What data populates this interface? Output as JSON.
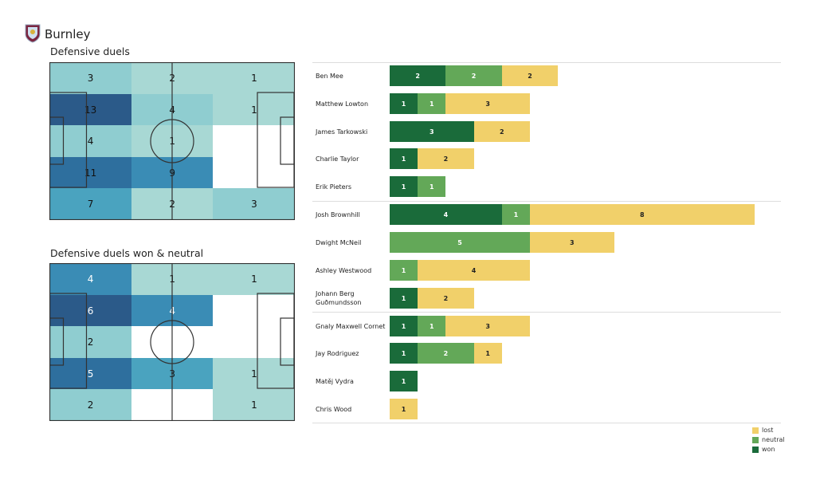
{
  "header": {
    "team": "Burnley"
  },
  "chart_data": [
    {
      "type": "heatmap",
      "title": "Defensive duels",
      "grid": [
        [
          3,
          2,
          1
        ],
        [
          13,
          4,
          1
        ],
        [
          4,
          1,
          null
        ],
        [
          11,
          9,
          null
        ],
        [
          7,
          2,
          3
        ]
      ]
    },
    {
      "type": "heatmap",
      "title": "Defensive duels won & neutral",
      "grid": [
        [
          4,
          1,
          1
        ],
        [
          6,
          4,
          null
        ],
        [
          2,
          null,
          null
        ],
        [
          5,
          3,
          1
        ],
        [
          2,
          null,
          1
        ]
      ]
    },
    {
      "type": "bar",
      "orientation": "horizontal",
      "stacked": true,
      "categories": [
        "Ben Mee",
        "Matthew Lowton",
        "James  Tarkowski",
        "Charlie Taylor",
        "Erik Pieters",
        "Josh Brownhill",
        "Dwight McNeil",
        "Ashley Westwood",
        "Johann  Berg Guðmundsson",
        "Gnaly Maxwell Cornet",
        "Jay Rodriguez",
        "Matěj Vydra",
        "Chris Wood"
      ],
      "series": [
        {
          "name": "won",
          "color": "#1a6b3a",
          "values": [
            2,
            1,
            3,
            1,
            1,
            4,
            0,
            0,
            1,
            1,
            1,
            1,
            0
          ]
        },
        {
          "name": "neutral",
          "color": "#63a858",
          "values": [
            2,
            1,
            0,
            0,
            1,
            1,
            5,
            1,
            0,
            1,
            2,
            0,
            0
          ]
        },
        {
          "name": "lost",
          "color": "#f1d06a",
          "values": [
            2,
            3,
            2,
            2,
            0,
            8,
            3,
            4,
            2,
            3,
            1,
            0,
            1
          ]
        }
      ],
      "legend": [
        "lost",
        "neutral",
        "won"
      ],
      "legend_position": "bottom-right"
    }
  ]
}
